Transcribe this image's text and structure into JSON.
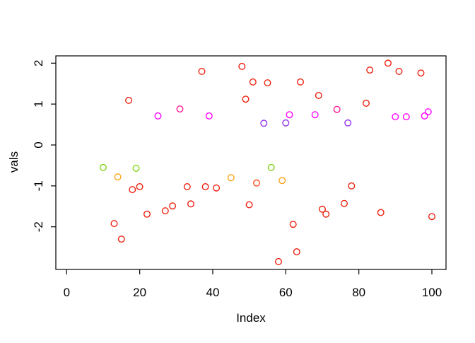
{
  "figure": {
    "background": "#ffffff"
  },
  "chart_data": {
    "type": "scatter",
    "title": "",
    "xlabel": "Index",
    "ylabel": "vals",
    "xlim": [
      -3,
      104
    ],
    "ylim": [
      -3.05,
      2.18
    ],
    "x_ticks": [
      0,
      20,
      40,
      60,
      80,
      100
    ],
    "y_ticks": [
      -2,
      -1,
      0,
      1,
      2
    ],
    "grid": false,
    "legend": null,
    "marker": "open-circle",
    "axis_color": "#000000",
    "palette": {
      "red": "#ee2211",
      "magenta": "#ff00ff",
      "deeppink": "#ff1493",
      "purple": "#9135e8",
      "green": "#83d41c",
      "orange": "#ffa319",
      "orangered": "#ff4f1f"
    },
    "points": [
      {
        "x": 10,
        "y": -0.55,
        "color": "green"
      },
      {
        "x": 13,
        "y": -1.92,
        "color": "red"
      },
      {
        "x": 14,
        "y": -0.78,
        "color": "orange"
      },
      {
        "x": 15,
        "y": -2.3,
        "color": "red"
      },
      {
        "x": 17,
        "y": 1.09,
        "color": "red"
      },
      {
        "x": 18,
        "y": -1.09,
        "color": "red"
      },
      {
        "x": 19,
        "y": -0.57,
        "color": "green"
      },
      {
        "x": 20,
        "y": -1.02,
        "color": "red"
      },
      {
        "x": 22,
        "y": -1.69,
        "color": "red"
      },
      {
        "x": 25,
        "y": 0.71,
        "color": "magenta"
      },
      {
        "x": 27,
        "y": -1.61,
        "color": "red"
      },
      {
        "x": 29,
        "y": -1.49,
        "color": "red"
      },
      {
        "x": 31,
        "y": 0.88,
        "color": "deeppink"
      },
      {
        "x": 33,
        "y": -1.02,
        "color": "red"
      },
      {
        "x": 34,
        "y": -1.44,
        "color": "red"
      },
      {
        "x": 37,
        "y": 1.8,
        "color": "red"
      },
      {
        "x": 38,
        "y": -1.02,
        "color": "red"
      },
      {
        "x": 39,
        "y": 0.71,
        "color": "magenta"
      },
      {
        "x": 41,
        "y": -1.05,
        "color": "red"
      },
      {
        "x": 45,
        "y": -0.8,
        "color": "orange"
      },
      {
        "x": 48,
        "y": 1.92,
        "color": "red"
      },
      {
        "x": 49,
        "y": 1.12,
        "color": "red"
      },
      {
        "x": 50,
        "y": -1.46,
        "color": "red"
      },
      {
        "x": 51,
        "y": 1.54,
        "color": "red"
      },
      {
        "x": 52,
        "y": -0.93,
        "color": "orangered"
      },
      {
        "x": 54,
        "y": 0.53,
        "color": "purple"
      },
      {
        "x": 55,
        "y": 1.52,
        "color": "red"
      },
      {
        "x": 56,
        "y": -0.55,
        "color": "green"
      },
      {
        "x": 58,
        "y": -2.85,
        "color": "red"
      },
      {
        "x": 59,
        "y": -0.87,
        "color": "orange"
      },
      {
        "x": 60,
        "y": 0.54,
        "color": "purple"
      },
      {
        "x": 61,
        "y": 0.74,
        "color": "magenta"
      },
      {
        "x": 62,
        "y": -1.94,
        "color": "red"
      },
      {
        "x": 63,
        "y": -2.61,
        "color": "red"
      },
      {
        "x": 64,
        "y": 1.54,
        "color": "red"
      },
      {
        "x": 68,
        "y": 0.74,
        "color": "magenta"
      },
      {
        "x": 69,
        "y": 1.21,
        "color": "red"
      },
      {
        "x": 70,
        "y": -1.57,
        "color": "red"
      },
      {
        "x": 71,
        "y": -1.69,
        "color": "red"
      },
      {
        "x": 74,
        "y": 0.87,
        "color": "deeppink"
      },
      {
        "x": 76,
        "y": -1.43,
        "color": "red"
      },
      {
        "x": 77,
        "y": 0.54,
        "color": "purple"
      },
      {
        "x": 78,
        "y": -1.0,
        "color": "red"
      },
      {
        "x": 82,
        "y": 1.02,
        "color": "red"
      },
      {
        "x": 83,
        "y": 1.83,
        "color": "red"
      },
      {
        "x": 86,
        "y": -1.65,
        "color": "red"
      },
      {
        "x": 88,
        "y": 2.0,
        "color": "red"
      },
      {
        "x": 90,
        "y": 0.69,
        "color": "magenta"
      },
      {
        "x": 91,
        "y": 1.8,
        "color": "red"
      },
      {
        "x": 93,
        "y": 0.69,
        "color": "magenta"
      },
      {
        "x": 97,
        "y": 1.76,
        "color": "red"
      },
      {
        "x": 98,
        "y": 0.71,
        "color": "magenta"
      },
      {
        "x": 99,
        "y": 0.81,
        "color": "magenta"
      },
      {
        "x": 100,
        "y": -1.75,
        "color": "red"
      }
    ]
  }
}
